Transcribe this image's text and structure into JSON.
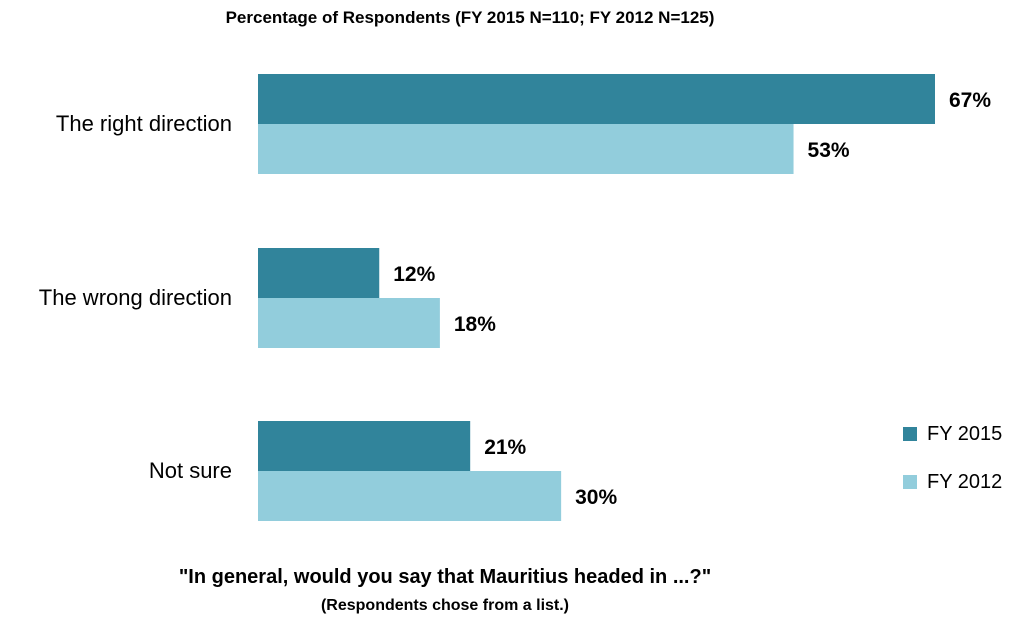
{
  "chart_data": {
    "type": "bar",
    "orientation": "horizontal",
    "title": "Percentage of Respondents  (FY 2015 N=110; FY 2012 N=125)",
    "question": "\"In general, would you say that Mauritius headed in ...?\"",
    "note": "(Respondents chose from a list.)",
    "categories": [
      "The right direction",
      "The wrong direction",
      "Not sure"
    ],
    "series": [
      {
        "name": "FY 2015",
        "values": [
          67,
          12,
          21
        ],
        "labels": [
          "67%",
          "12%",
          "21%"
        ],
        "color": "#31849b"
      },
      {
        "name": "FY 2012",
        "values": [
          53,
          18,
          30
        ],
        "labels": [
          "53%",
          "18%",
          "30%"
        ],
        "color": "#92cddc"
      }
    ],
    "xlim": [
      0,
      100
    ],
    "grid": false,
    "legend_position": "right"
  }
}
